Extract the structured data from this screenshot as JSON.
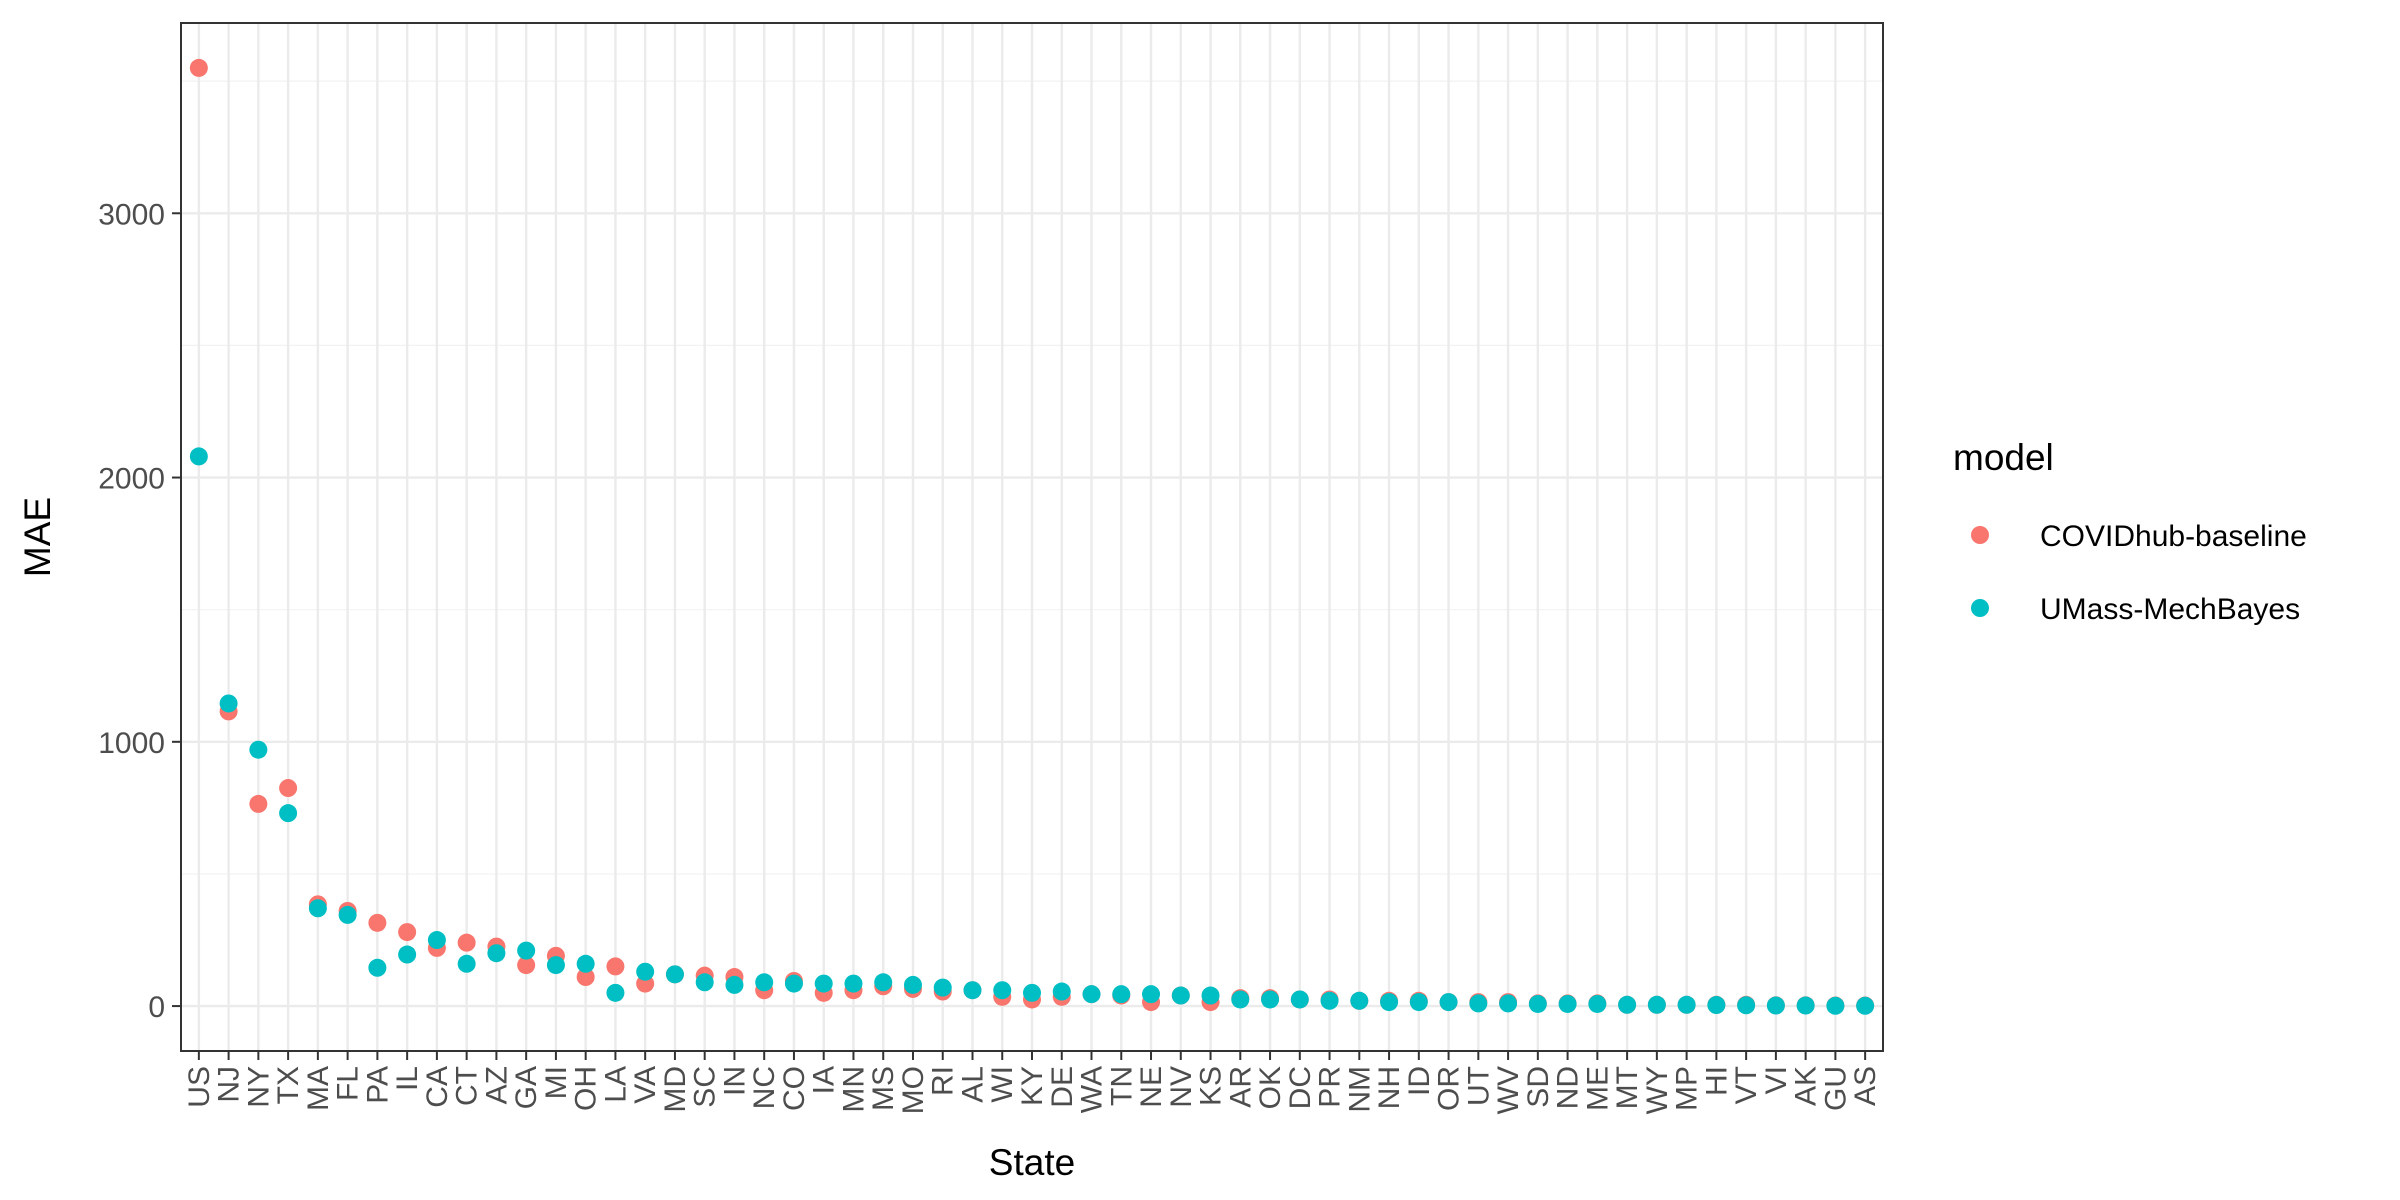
{
  "chart_data": {
    "type": "scatter",
    "title": "",
    "xlabel": "State",
    "ylabel": "MAE",
    "ylim": [
      -170,
      3720
    ],
    "yticks": [
      0,
      1000,
      2000,
      3000
    ],
    "ytick_labels": [
      "0",
      "1000",
      "2000",
      "3000"
    ],
    "grid": true,
    "legend_position": "right",
    "legend_title": "model",
    "categories": [
      "US",
      "NJ",
      "NY",
      "TX",
      "MA",
      "FL",
      "PA",
      "IL",
      "CA",
      "CT",
      "AZ",
      "GA",
      "MI",
      "OH",
      "LA",
      "VA",
      "MD",
      "SC",
      "IN",
      "NC",
      "CO",
      "IA",
      "MN",
      "MS",
      "MO",
      "RI",
      "AL",
      "WI",
      "KY",
      "DE",
      "WA",
      "TN",
      "NE",
      "NV",
      "KS",
      "AR",
      "OK",
      "DC",
      "PR",
      "NM",
      "NH",
      "ID",
      "OR",
      "UT",
      "WV",
      "SD",
      "ND",
      "ME",
      "MT",
      "WY",
      "MP",
      "HI",
      "VT",
      "VI",
      "AK",
      "GU",
      "AS"
    ],
    "series": [
      {
        "name": "COVIDhub-baseline",
        "color": "#F8766D",
        "values": [
          3550,
          1115,
          765,
          825,
          385,
          360,
          315,
          280,
          220,
          240,
          225,
          155,
          190,
          110,
          150,
          85,
          120,
          115,
          110,
          60,
          95,
          50,
          60,
          75,
          65,
          55,
          60,
          35,
          25,
          35,
          45,
          40,
          15,
          40,
          15,
          30,
          30,
          25,
          25,
          20,
          20,
          20,
          15,
          15,
          15,
          10,
          10,
          10,
          5,
          5,
          5,
          5,
          5,
          3,
          3,
          2,
          2
        ]
      },
      {
        "name": "UMass-MechBayes",
        "color": "#00BFC4",
        "values": [
          2080,
          1145,
          970,
          730,
          370,
          345,
          145,
          195,
          250,
          160,
          200,
          210,
          155,
          160,
          50,
          130,
          120,
          90,
          80,
          90,
          85,
          85,
          85,
          90,
          80,
          70,
          60,
          60,
          50,
          55,
          45,
          45,
          45,
          40,
          40,
          25,
          25,
          25,
          20,
          20,
          15,
          15,
          15,
          10,
          10,
          8,
          8,
          8,
          5,
          5,
          5,
          4,
          3,
          2,
          2,
          1,
          1
        ]
      }
    ]
  }
}
